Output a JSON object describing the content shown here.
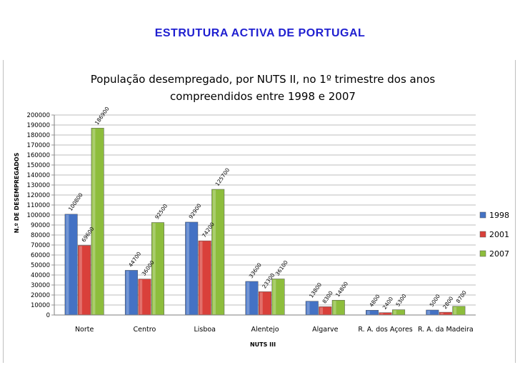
{
  "slide": {
    "title": "ESTRUTURA  ACTIVA DE PORTUGAL"
  },
  "chart_data": {
    "type": "bar",
    "title_line1": "População desempregado, por NUTS II, no 1º trimestre dos anos",
    "title_line2": "compreendidos entre 1998 e 2007",
    "xlabel": "NUTS III",
    "ylabel": "N.º DE DESEMPREGADOS",
    "ylim": [
      0,
      200000
    ],
    "ytick_step": 10000,
    "yticks": [
      "0",
      "10000",
      "20000",
      "30000",
      "40000",
      "50000",
      "60000",
      "70000",
      "80000",
      "90000",
      "100000",
      "110000",
      "120000",
      "130000",
      "140000",
      "150000",
      "160000",
      "170000",
      "180000",
      "190000",
      "200000"
    ],
    "grid": true,
    "legend_position": "right",
    "categories": [
      "Norte",
      "Centro",
      "Lisboa",
      "Alentejo",
      "Algarve",
      "R. A. dos Açores",
      "R. A. da Madeira"
    ],
    "series": [
      {
        "name": "1998",
        "color": "#4472c4",
        "values": [
          100800,
          44700,
          92900,
          33600,
          13800,
          4800,
          5000
        ],
        "labels": [
          "100800",
          "44700",
          "92900",
          "33600",
          "13800",
          "4800",
          "5000"
        ]
      },
      {
        "name": "2001",
        "color": "#d9403a",
        "values": [
          69600,
          36000,
          74200,
          23300,
          8300,
          2400,
          2800
        ],
        "labels": [
          "69600",
          "36000",
          "74200",
          "23300",
          "8300",
          "2400",
          "2800"
        ]
      },
      {
        "name": "2007",
        "color": "#8dbd3c",
        "values": [
          186900,
          92500,
          125700,
          36100,
          14800,
          5300,
          8700
        ],
        "labels": [
          "186900",
          "92500",
          "125700",
          "36100",
          "14800",
          "5300",
          "8700"
        ]
      }
    ]
  }
}
